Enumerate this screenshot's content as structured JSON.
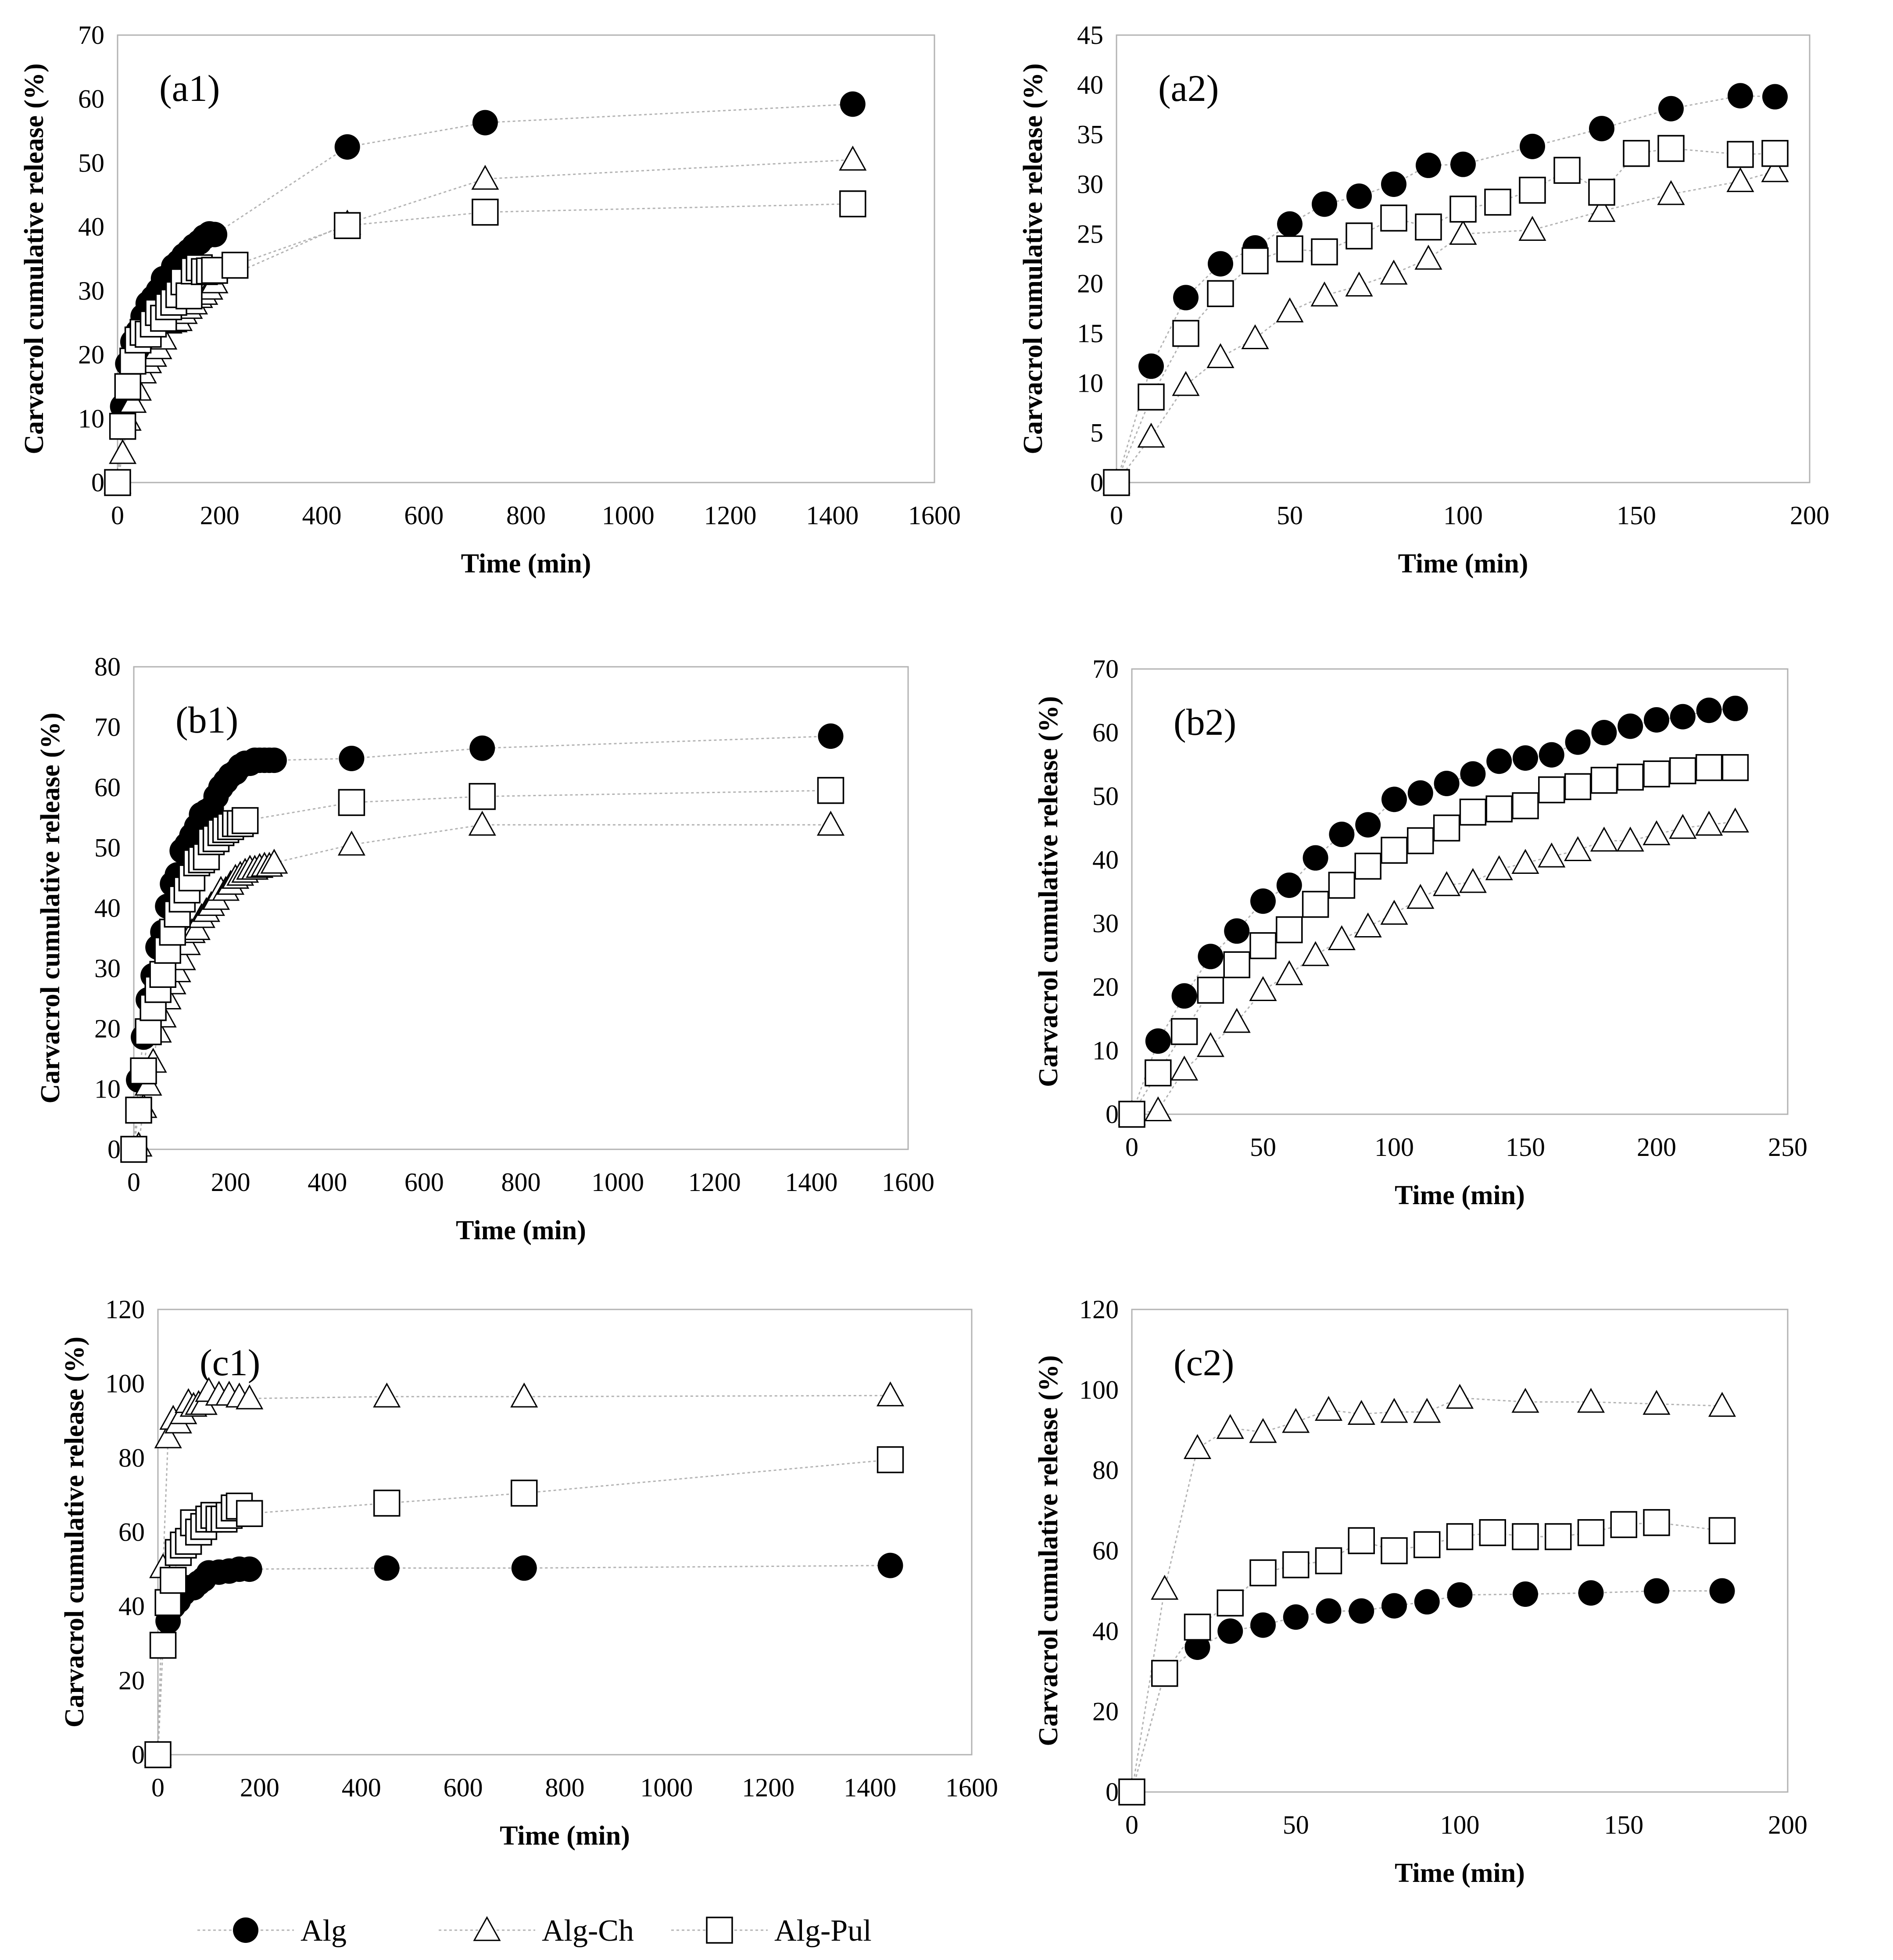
{
  "legend": {
    "items": [
      {
        "label": "Alg",
        "marker": "filled-circle"
      },
      {
        "label": "Alg-Ch",
        "marker": "open-triangle"
      },
      {
        "label": "Alg-Pul",
        "marker": "open-square"
      }
    ]
  },
  "colors": {
    "marker": "#000000",
    "line": "#b3b3b3",
    "frame": "#b3b3b3"
  },
  "chart_data": [
    {
      "panel": "(a1)",
      "type": "scatter",
      "xlabel": "Time (min)",
      "ylabel": "Carvacrol cumulative release (%)",
      "xlim": [
        0,
        1600
      ],
      "ylim": [
        0,
        70
      ],
      "xticks": [
        0,
        200,
        400,
        600,
        800,
        1000,
        1200,
        1400,
        1600
      ],
      "yticks": [
        0,
        10,
        20,
        30,
        40,
        50,
        60,
        70
      ],
      "series": [
        {
          "name": "Alg",
          "x": [
            0,
            10,
            20,
            30,
            40,
            50,
            60,
            70,
            80,
            90,
            100,
            110,
            120,
            130,
            140,
            150,
            160,
            170,
            180,
            190,
            450,
            720,
            1440
          ],
          "y": [
            0,
            11.9,
            18.6,
            22,
            23.6,
            26,
            28,
            28.9,
            30,
            31.9,
            32,
            33.8,
            34.5,
            35.5,
            36.2,
            37,
            37.6,
            38.4,
            38.9,
            38.8,
            52.5,
            56.3,
            59.2
          ]
        },
        {
          "name": "Alg-Ch",
          "x": [
            0,
            10,
            20,
            30,
            40,
            50,
            60,
            70,
            80,
            90,
            100,
            110,
            120,
            130,
            140,
            150,
            160,
            170,
            180,
            190,
            450,
            720,
            1440
          ],
          "y": [
            0,
            4.6,
            9.8,
            12.6,
            14.5,
            17.2,
            18.8,
            19.8,
            21,
            22.5,
            25,
            25.2,
            25.4,
            26.5,
            27.3,
            28,
            29,
            29.5,
            30.3,
            31.3,
            40.5,
            47.5,
            50.5
          ]
        },
        {
          "name": "Alg-Pul",
          "x": [
            0,
            10,
            20,
            30,
            40,
            50,
            60,
            70,
            80,
            90,
            100,
            110,
            120,
            130,
            140,
            150,
            160,
            170,
            180,
            190,
            230,
            450,
            720,
            1440
          ],
          "y": [
            0,
            8.8,
            15,
            19,
            22.3,
            23.5,
            23.2,
            24.8,
            26.6,
            25.7,
            27.5,
            28.2,
            29.4,
            31.4,
            29.2,
            33.1,
            33.6,
            33,
            33.1,
            33.2,
            34,
            40.2,
            42.3,
            43.6
          ]
        }
      ]
    },
    {
      "panel": "(a2)",
      "type": "scatter",
      "xlabel": "Time (min)",
      "ylabel": "Carvacrol cumulative release (%)",
      "xlim": [
        0,
        200
      ],
      "ylim": [
        0,
        45
      ],
      "xticks": [
        0,
        50,
        100,
        150,
        200
      ],
      "yticks": [
        0,
        5,
        10,
        15,
        20,
        25,
        30,
        35,
        40,
        45
      ],
      "series": [
        {
          "name": "Alg",
          "x": [
            0,
            10,
            20,
            30,
            40,
            50,
            60,
            70,
            80,
            90,
            100,
            120,
            140,
            160,
            180,
            190
          ],
          "y": [
            0,
            11.7,
            18.6,
            22,
            23.6,
            26,
            28,
            28.8,
            30,
            31.9,
            32,
            33.8,
            35.6,
            37.6,
            38.9,
            38.8
          ]
        },
        {
          "name": "Alg-Ch",
          "x": [
            0,
            10,
            20,
            30,
            40,
            50,
            60,
            70,
            80,
            90,
            100,
            120,
            140,
            160,
            180,
            190
          ],
          "y": [
            0,
            4.6,
            9.8,
            12.6,
            14.5,
            17.2,
            18.8,
            19.8,
            21,
            22.5,
            25,
            25.4,
            27.3,
            29,
            30.3,
            31.3
          ]
        },
        {
          "name": "Alg-Pul",
          "x": [
            0,
            10,
            20,
            30,
            40,
            50,
            60,
            70,
            80,
            90,
            100,
            110,
            120,
            130,
            140,
            150,
            160,
            180,
            190
          ],
          "y": [
            0,
            8.6,
            15,
            19,
            22.3,
            23.5,
            23.2,
            24.8,
            26.6,
            25.7,
            27.5,
            28.2,
            29.4,
            31.4,
            29.2,
            33.1,
            33.6,
            33,
            33.1
          ]
        }
      ]
    },
    {
      "panel": "(b1)",
      "type": "scatter",
      "xlabel": "Time (min)",
      "ylabel": "Carvacrol cumulative release (%)",
      "xlim": [
        0,
        1600
      ],
      "ylim": [
        0,
        80
      ],
      "xticks": [
        0,
        200,
        400,
        600,
        800,
        1000,
        1200,
        1400,
        1600
      ],
      "yticks": [
        0,
        10,
        20,
        30,
        40,
        50,
        60,
        70,
        80
      ],
      "series": [
        {
          "name": "Alg",
          "x": [
            0,
            10,
            20,
            30,
            40,
            50,
            60,
            70,
            80,
            90,
            100,
            110,
            120,
            130,
            140,
            150,
            160,
            170,
            180,
            190,
            200,
            210,
            220,
            230,
            240,
            250,
            260,
            270,
            280,
            290,
            450,
            720,
            1440
          ],
          "y": [
            0,
            11.5,
            18.6,
            24.8,
            28.8,
            33.5,
            36,
            40.3,
            44,
            45.5,
            49.5,
            50.5,
            52,
            53.5,
            55.5,
            56,
            56.5,
            58.5,
            60,
            61,
            62,
            62.5,
            63.5,
            64,
            64,
            64.5,
            64.5,
            64.5,
            64.5,
            64.5,
            64.8,
            66.5,
            68.5
          ]
        },
        {
          "name": "Alg-Ch",
          "x": [
            0,
            10,
            20,
            30,
            40,
            50,
            60,
            70,
            80,
            90,
            100,
            110,
            120,
            130,
            140,
            150,
            160,
            170,
            180,
            190,
            200,
            210,
            220,
            230,
            240,
            250,
            260,
            270,
            280,
            290,
            450,
            720,
            1440
          ],
          "y": [
            0,
            0.6,
            7,
            10.7,
            14.5,
            19.5,
            22,
            25,
            27.5,
            29.5,
            31.5,
            34,
            36,
            36.5,
            38.5,
            39.5,
            40.5,
            41.5,
            43,
            43,
            44,
            45,
            45.5,
            46,
            46.5,
            46.5,
            46.8,
            47,
            47,
            47.5,
            50.5,
            53.8,
            53.8
          ]
        },
        {
          "name": "Alg-Pul",
          "x": [
            0,
            10,
            20,
            30,
            40,
            50,
            60,
            70,
            80,
            90,
            100,
            110,
            120,
            130,
            140,
            150,
            160,
            170,
            180,
            190,
            200,
            210,
            220,
            230,
            450,
            720,
            1440
          ],
          "y": [
            0,
            6.5,
            13,
            19.5,
            23.5,
            26.5,
            29,
            33,
            36,
            39,
            41.5,
            43,
            45,
            47.5,
            48,
            48.5,
            51,
            51.5,
            52.5,
            53,
            53.5,
            54,
            54,
            54.5,
            57.5,
            58.5,
            59.5
          ]
        }
      ]
    },
    {
      "panel": "(b2)",
      "type": "scatter",
      "xlabel": "Time (min)",
      "ylabel": "Carvacrol cumulative release (%)",
      "xlim": [
        0,
        250
      ],
      "ylim": [
        0,
        70
      ],
      "xticks": [
        0,
        50,
        100,
        150,
        200,
        250
      ],
      "yticks": [
        0,
        10,
        20,
        30,
        40,
        50,
        60,
        70
      ],
      "series": [
        {
          "name": "Alg",
          "x": [
            0,
            10,
            20,
            30,
            40,
            50,
            60,
            70,
            80,
            90,
            100,
            110,
            120,
            130,
            140,
            150,
            160,
            170,
            180,
            190,
            200,
            210,
            220,
            230
          ],
          "y": [
            0,
            11.5,
            18.6,
            24.8,
            28.8,
            33.5,
            36,
            40.3,
            44,
            45.5,
            49.5,
            50.5,
            52,
            53.5,
            55.5,
            56,
            56.5,
            58.5,
            60,
            61,
            62,
            62.5,
            63.5,
            63.8
          ]
        },
        {
          "name": "Alg-Ch",
          "x": [
            0,
            10,
            20,
            30,
            40,
            50,
            60,
            70,
            80,
            90,
            100,
            110,
            120,
            130,
            140,
            150,
            160,
            170,
            180,
            190,
            200,
            210,
            220,
            230
          ],
          "y": [
            0,
            0.6,
            7,
            10.7,
            14.5,
            19.5,
            22,
            25,
            27.5,
            29.5,
            31.5,
            34,
            36,
            36.5,
            38.5,
            39.5,
            40.5,
            41.5,
            43,
            43,
            44,
            45,
            45.5,
            46
          ]
        },
        {
          "name": "Alg-Pul",
          "x": [
            0,
            10,
            20,
            30,
            40,
            50,
            60,
            70,
            80,
            90,
            100,
            110,
            120,
            130,
            140,
            150,
            160,
            170,
            180,
            190,
            200,
            210,
            220,
            230
          ],
          "y": [
            0,
            6.5,
            13,
            19.5,
            23.5,
            26.5,
            29,
            33,
            36,
            39,
            41.5,
            43,
            45,
            47.5,
            48,
            48.5,
            51,
            51.5,
            52.5,
            53,
            53.5,
            54,
            54.5,
            54.5
          ]
        }
      ]
    },
    {
      "panel": "(c1)",
      "type": "scatter",
      "xlabel": "Time (min)",
      "ylabel": "Carvacrol cumulative release (%)",
      "xlim": [
        0,
        1600
      ],
      "ylim": [
        0,
        120
      ],
      "xticks": [
        0,
        200,
        400,
        600,
        800,
        1000,
        1200,
        1400,
        1600
      ],
      "ytick_labels": [
        "0",
        "20",
        "40",
        "60",
        "80",
        "100",
        "120"
      ],
      "xtick_labels": [
        "0",
        "200",
        "400",
        "600",
        "800",
        "1000",
        "1200",
        "1400",
        "1600"
      ],
      "yticks": [
        0,
        20,
        40,
        60,
        80,
        100,
        120
      ],
      "series": [
        {
          "name": "Alg",
          "x": [
            0,
            10,
            20,
            30,
            40,
            50,
            60,
            70,
            80,
            90,
            100,
            120,
            140,
            160,
            180,
            450,
            720,
            1440
          ],
          "y": [
            0,
            29.5,
            36,
            40,
            41.5,
            43.5,
            45,
            45,
            46.3,
            47.3,
            49,
            49.2,
            49.5,
            50,
            50,
            50.3,
            50.3,
            51
          ]
        },
        {
          "name": "Alg-Ch",
          "x": [
            0,
            10,
            20,
            30,
            40,
            50,
            60,
            70,
            80,
            90,
            100,
            120,
            140,
            160,
            180,
            450,
            720,
            1440
          ],
          "y": [
            0,
            50.5,
            85.5,
            90.5,
            89.5,
            92,
            95,
            94,
            94.5,
            94.5,
            98,
            97,
            97,
            96.5,
            96,
            96.5,
            96.5,
            96.8
          ]
        },
        {
          "name": "Alg-Pul",
          "x": [
            0,
            10,
            20,
            30,
            40,
            50,
            60,
            70,
            80,
            90,
            100,
            110,
            120,
            130,
            140,
            150,
            160,
            180,
            450,
            720,
            1440
          ],
          "y": [
            0,
            29.5,
            41,
            47,
            54.5,
            56.5,
            57.5,
            62.5,
            60,
            61.5,
            63.5,
            64.5,
            63.5,
            63.5,
            64.5,
            66.5,
            67,
            65,
            67.8,
            70.5,
            79.5
          ]
        }
      ]
    },
    {
      "panel": "(c2)",
      "type": "scatter",
      "xlabel": "Time (min)",
      "ylabel": "Carvacrol cumulative release (%)",
      "xlim": [
        0,
        200
      ],
      "ylim": [
        0,
        120
      ],
      "xticks": [
        0,
        50,
        100,
        150,
        200
      ],
      "yticks": [
        0,
        20,
        40,
        60,
        80,
        100,
        120
      ],
      "series": [
        {
          "name": "Alg",
          "x": [
            0,
            10,
            20,
            30,
            40,
            50,
            60,
            70,
            80,
            90,
            100,
            120,
            140,
            160,
            180
          ],
          "y": [
            0,
            29.5,
            36,
            40,
            41.5,
            43.5,
            45,
            45,
            46.3,
            47.3,
            49,
            49.2,
            49.5,
            50,
            50
          ]
        },
        {
          "name": "Alg-Ch",
          "x": [
            0,
            10,
            20,
            30,
            40,
            50,
            60,
            70,
            80,
            90,
            100,
            120,
            140,
            160,
            180
          ],
          "y": [
            0,
            50.5,
            85.5,
            90.5,
            89.5,
            92,
            95,
            94,
            94.5,
            94.5,
            98,
            97,
            97,
            96.5,
            96
          ]
        },
        {
          "name": "Alg-Pul",
          "x": [
            0,
            10,
            20,
            30,
            40,
            50,
            60,
            70,
            80,
            90,
            100,
            110,
            120,
            130,
            140,
            150,
            160,
            180
          ],
          "y": [
            0,
            29.5,
            41,
            47,
            54.5,
            56.5,
            57.5,
            62.5,
            60,
            61.5,
            63.5,
            64.5,
            63.5,
            63.5,
            64.5,
            66.5,
            67,
            65
          ]
        }
      ]
    }
  ]
}
